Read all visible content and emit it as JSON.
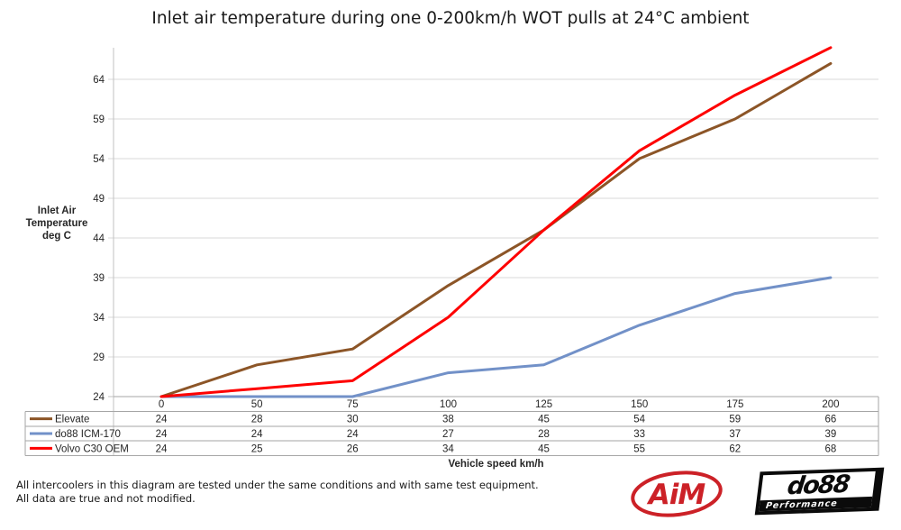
{
  "title": "Inlet air temperature during one 0-200km/h WOT pulls at 24°C ambient",
  "y_axis": {
    "title_lines": [
      "Inlet Air",
      "Temperature",
      "deg C"
    ],
    "ticks": [
      24,
      29,
      34,
      39,
      44,
      49,
      54,
      59,
      64
    ]
  },
  "x_axis": {
    "title": "Vehicle speed km/h"
  },
  "chart_data": {
    "type": "line",
    "title": "Inlet air temperature during one 0-200km/h WOT pulls at 24°C ambient",
    "xlabel": "Vehicle speed km/h",
    "ylabel": "Inlet Air Temperature deg C",
    "categories": [
      0,
      50,
      75,
      100,
      125,
      150,
      175,
      200
    ],
    "series": [
      {
        "name": "Elevate",
        "color": "#8C5527",
        "values": [
          24,
          28,
          30,
          38,
          45,
          54,
          59,
          66
        ]
      },
      {
        "name": "do88 ICM-170",
        "color": "#7291C8",
        "values": [
          24,
          24,
          24,
          27,
          28,
          33,
          37,
          39
        ]
      },
      {
        "name": "Volvo C30 OEM",
        "color": "#FE0000",
        "values": [
          24,
          25,
          26,
          34,
          45,
          55,
          62,
          68
        ]
      }
    ],
    "ylim": [
      24,
      68
    ],
    "grid": true,
    "legend_position": "data-table-left",
    "data_table_shown": true
  },
  "footnotes": [
    "All intercoolers in this diagram are tested under the same conditions and with same test equipment.",
    "All data are true and not modified."
  ],
  "logos": {
    "aim_text": "AiM",
    "do88_text": "do88",
    "do88_sub": "Performance"
  },
  "colors": {
    "grid": "#D9D9D9",
    "axis": "#C2C2C2",
    "table_border": "#A6A6A6",
    "text": "#262626",
    "aim_red": "#CC2127",
    "logo_black": "#0B0B0B"
  }
}
